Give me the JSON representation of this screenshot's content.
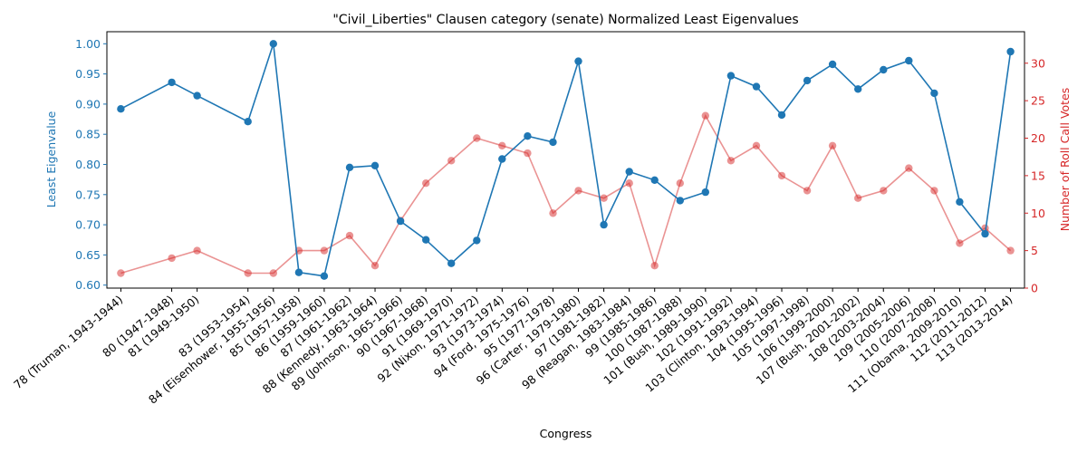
{
  "chart_data": {
    "type": "line",
    "title": "\"Civil_Liberties\" Clausen category (senate) Normalized Least Eigenvalues",
    "xlabel": "Congress",
    "ylabel_left": "Least Eigenvalue",
    "ylabel_right": "Number of Roll Call Votes",
    "ylim_left": [
      0.595,
      1.02
    ],
    "ylim_right": [
      0,
      34.2
    ],
    "yticks_left": [
      "0.60",
      "0.65",
      "0.70",
      "0.75",
      "0.80",
      "0.85",
      "0.90",
      "0.95",
      "1.00"
    ],
    "yticks_right": [
      "0",
      "5",
      "10",
      "15",
      "20",
      "25",
      "30"
    ],
    "grid": false,
    "colors": {
      "left_series": "#1f77b4",
      "right_series": "#d62728",
      "axes": "#000000"
    },
    "x": [
      78,
      80,
      81,
      83,
      84,
      85,
      86,
      87,
      88,
      89,
      90,
      91,
      92,
      93,
      94,
      95,
      96,
      97,
      98,
      99,
      100,
      101,
      102,
      103,
      104,
      105,
      106,
      107,
      108,
      109,
      110,
      111,
      112,
      113
    ],
    "x_tick_labels": [
      "78 (Truman, 1943-1944)",
      "80 (1947-1948)",
      "81 (1949-1950)",
      "83 (1953-1954)",
      "84 (Eisenhower, 1955-1956)",
      "85 (1957-1958)",
      "86 (1959-1960)",
      "87 (1961-1962)",
      "88 (Kennedy, 1963-1964)",
      "89 (Johnson, 1965-1966)",
      "90 (1967-1968)",
      "91 (1969-1970)",
      "92 (Nixon, 1971-1972)",
      "93 (1973-1974)",
      "94 (Ford, 1975-1976)",
      "95 (1977-1978)",
      "96 (Carter, 1979-1980)",
      "97 (1981-1982)",
      "98 (Reagan, 1983-1984)",
      "99 (1985-1986)",
      "100 (1987-1988)",
      "101 (Bush, 1989-1990)",
      "102 (1991-1992)",
      "103 (Clinton, 1993-1994)",
      "104 (1995-1996)",
      "105 (1997-1998)",
      "106 (1999-2000)",
      "107 (Bush, 2001-2002)",
      "108 (2003-2004)",
      "109 (2005-2006)",
      "110 (2007-2008)",
      "111 (Obama, 2009-2010)",
      "112 (2011-2012)",
      "113 (2013-2014)"
    ],
    "series": [
      {
        "axis": "left",
        "values": [
          0.892,
          0.936,
          0.914,
          0.871,
          1.0,
          0.621,
          0.615,
          0.795,
          0.798,
          0.706,
          0.675,
          0.636,
          0.674,
          0.809,
          0.847,
          0.837,
          0.971,
          0.7,
          0.788,
          0.774,
          0.74,
          0.754,
          0.947,
          0.929,
          0.882,
          0.939,
          0.966,
          0.925,
          0.957,
          0.972,
          0.918,
          0.738,
          0.685,
          0.987
        ]
      },
      {
        "axis": "right",
        "values": [
          2,
          4,
          5,
          2,
          2,
          5,
          5,
          7,
          3,
          9,
          14,
          17,
          20,
          19,
          18,
          10,
          13,
          12,
          14,
          3,
          14,
          23,
          17,
          19,
          15,
          13,
          19,
          12,
          13,
          16,
          13,
          6,
          8,
          5
        ]
      }
    ]
  }
}
